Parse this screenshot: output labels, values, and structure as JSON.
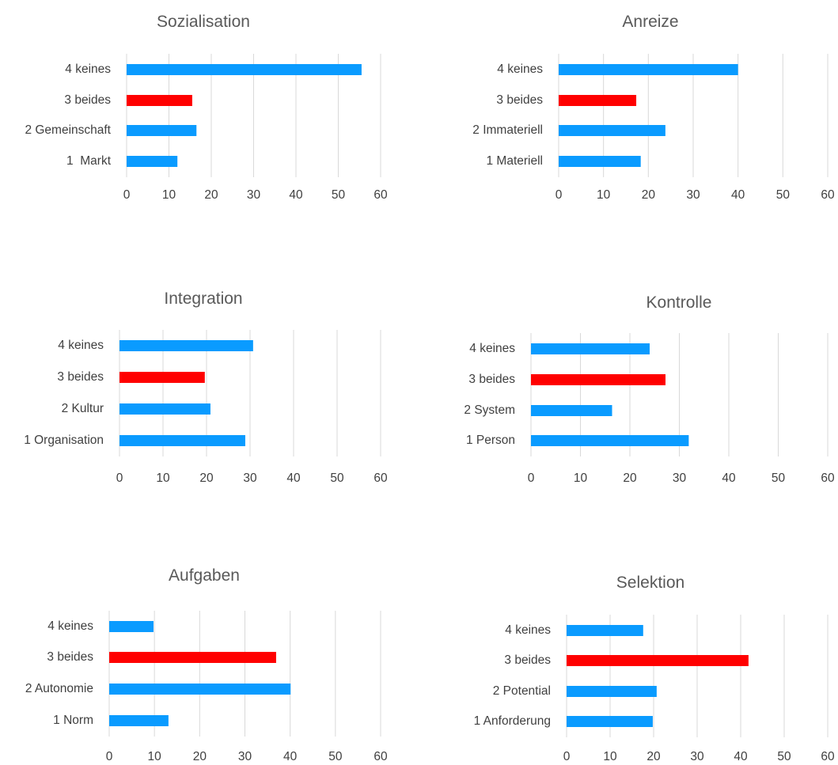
{
  "colors": {
    "default_bar": "#0A9BFF",
    "highlight_bar": "#FF0000",
    "grid": "#D9D9D9"
  },
  "chart_data": [
    {
      "type": "bar",
      "orientation": "horizontal",
      "title": "Sozialisation",
      "categories": [
        "4 keines",
        "3 beides",
        "2 Gemeinschaft",
        "1  Markt"
      ],
      "values": [
        55.5,
        15.5,
        16.5,
        12
      ],
      "highlight": [
        false,
        true,
        false,
        false
      ],
      "xlim": [
        0,
        60
      ],
      "xticks": [
        "0",
        "10",
        "20",
        "30",
        "40",
        "50",
        "60"
      ],
      "grid": true,
      "legend": "none"
    },
    {
      "type": "bar",
      "orientation": "horizontal",
      "title": "Anreize",
      "categories": [
        "4 keines",
        "3 beides",
        "2 Immateriell",
        "1 Materiell"
      ],
      "values": [
        40,
        17.3,
        23.8,
        18.3
      ],
      "highlight": [
        false,
        true,
        false,
        false
      ],
      "xlim": [
        0,
        60
      ],
      "xticks": [
        "0",
        "10",
        "20",
        "30",
        "40",
        "50",
        "60"
      ],
      "grid": true,
      "legend": "none"
    },
    {
      "type": "bar",
      "orientation": "horizontal",
      "title": "Integration",
      "categories": [
        "4 keines",
        "3 beides",
        "2 Kultur",
        "1 Organisation"
      ],
      "values": [
        30.7,
        19.6,
        20.9,
        28.9
      ],
      "highlight": [
        false,
        true,
        false,
        false
      ],
      "xlim": [
        0,
        60
      ],
      "xticks": [
        "0",
        "10",
        "20",
        "30",
        "40",
        "50",
        "60"
      ],
      "grid": true,
      "legend": "none"
    },
    {
      "type": "bar",
      "orientation": "horizontal",
      "title": "Kontrolle",
      "categories": [
        "4 keines",
        "3 beides",
        "2 System",
        "1 Person"
      ],
      "values": [
        24,
        27.2,
        16.4,
        31.9
      ],
      "highlight": [
        false,
        true,
        false,
        false
      ],
      "xlim": [
        0,
        60
      ],
      "xticks": [
        "0",
        "10",
        "20",
        "30",
        "40",
        "50",
        "60"
      ],
      "grid": true,
      "legend": "none"
    },
    {
      "type": "bar",
      "orientation": "horizontal",
      "title": "Aufgaben",
      "categories": [
        "4 keines",
        "3 beides",
        "2 Autonomie",
        "1 Norm"
      ],
      "values": [
        9.8,
        36.9,
        40.1,
        13.1
      ],
      "highlight": [
        false,
        true,
        false,
        false
      ],
      "xlim": [
        0,
        60
      ],
      "xticks": [
        "0",
        "10",
        "20",
        "30",
        "40",
        "50",
        "60"
      ],
      "grid": true,
      "legend": "none"
    },
    {
      "type": "bar",
      "orientation": "horizontal",
      "title": "Selektion",
      "categories": [
        "4 keines",
        "3 beides",
        "2 Potential",
        "1 Anforderung"
      ],
      "values": [
        17.6,
        41.8,
        20.7,
        19.8
      ],
      "highlight": [
        false,
        true,
        false,
        false
      ],
      "xlim": [
        0,
        60
      ],
      "xticks": [
        "0",
        "10",
        "20",
        "30",
        "40",
        "50",
        "60"
      ],
      "grid": true,
      "legend": "none"
    }
  ]
}
